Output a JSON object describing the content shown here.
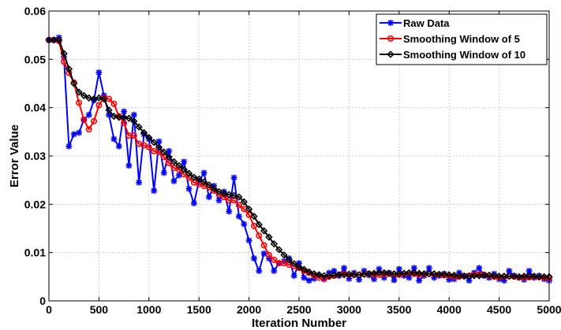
{
  "chart_data": {
    "type": "line",
    "xlabel": "Iteration Number",
    "ylabel": "Error Value",
    "xlim": [
      0,
      5000
    ],
    "ylim": [
      0,
      0.06
    ],
    "xticks": [
      0,
      500,
      1000,
      1500,
      2000,
      2500,
      3000,
      3500,
      4000,
      4500,
      5000
    ],
    "yticks": [
      0,
      0.01,
      0.02,
      0.03,
      0.04,
      0.05,
      0.06
    ],
    "ytick_labels": [
      "0",
      "0.01",
      "0.02",
      "0.03",
      "0.04",
      "0.05",
      "0.06"
    ],
    "grid": true,
    "legend_position": "top-right",
    "series": [
      {
        "name": "Raw Data",
        "color": "#0000ff",
        "marker": "asterisk",
        "x": [
          0,
          50,
          100,
          150,
          200,
          250,
          300,
          350,
          400,
          450,
          500,
          550,
          600,
          650,
          700,
          750,
          800,
          850,
          900,
          950,
          1000,
          1050,
          1100,
          1150,
          1200,
          1250,
          1300,
          1350,
          1400,
          1450,
          1500,
          1550,
          1600,
          1650,
          1700,
          1750,
          1800,
          1850,
          1900,
          1950,
          2000,
          2050,
          2100,
          2150,
          2200,
          2250,
          2300,
          2350,
          2400,
          2450,
          2500,
          2550,
          2600,
          2650,
          2700,
          2750,
          2800,
          2850,
          2900,
          2950,
          3000,
          3050,
          3100,
          3150,
          3200,
          3250,
          3300,
          3350,
          3400,
          3450,
          3500,
          3550,
          3600,
          3650,
          3700,
          3750,
          3800,
          3850,
          3900,
          3950,
          4000,
          4050,
          4100,
          4150,
          4200,
          4250,
          4300,
          4350,
          4400,
          4450,
          4500,
          4550,
          4600,
          4650,
          4700,
          4750,
          4800,
          4850,
          4900,
          4950,
          5000
        ],
        "y": [
          0.054,
          0.054,
          0.0545,
          0.0505,
          0.032,
          0.0345,
          0.0348,
          0.0375,
          0.0385,
          0.0415,
          0.0473,
          0.0425,
          0.0385,
          0.0335,
          0.032,
          0.0392,
          0.028,
          0.0385,
          0.0245,
          0.0345,
          0.0335,
          0.0228,
          0.033,
          0.0265,
          0.031,
          0.0248,
          0.026,
          0.0288,
          0.0232,
          0.0202,
          0.0248,
          0.0265,
          0.0215,
          0.0238,
          0.0208,
          0.0226,
          0.0185,
          0.0255,
          0.0175,
          0.0159,
          0.0125,
          0.0088,
          0.0062,
          0.0098,
          0.0088,
          0.0062,
          0.0078,
          0.0082,
          0.0088,
          0.0052,
          0.0078,
          0.0048,
          0.0042,
          0.0046,
          0.0052,
          0.0045,
          0.0058,
          0.0062,
          0.0052,
          0.0068,
          0.0046,
          0.0058,
          0.0044,
          0.0062,
          0.0053,
          0.0045,
          0.0066,
          0.0048,
          0.0058,
          0.0043,
          0.0066,
          0.0052,
          0.0048,
          0.0068,
          0.0042,
          0.0052,
          0.0068,
          0.0048,
          0.0052,
          0.0056,
          0.0044,
          0.0045,
          0.0058,
          0.0052,
          0.0042,
          0.0058,
          0.0068,
          0.0052,
          0.0048,
          0.0056,
          0.0045,
          0.0042,
          0.0062,
          0.0052,
          0.0048,
          0.0044,
          0.0062,
          0.0048,
          0.0052,
          0.0045,
          0.0042
        ]
      },
      {
        "name": "Smoothing Window of 5",
        "color": "#ff0000",
        "marker": "circle",
        "x": [
          0,
          50,
          100,
          150,
          200,
          250,
          300,
          350,
          400,
          450,
          500,
          550,
          600,
          650,
          700,
          750,
          800,
          850,
          900,
          950,
          1000,
          1050,
          1100,
          1150,
          1200,
          1250,
          1300,
          1350,
          1400,
          1450,
          1500,
          1550,
          1600,
          1650,
          1700,
          1750,
          1800,
          1850,
          1900,
          1950,
          2000,
          2050,
          2100,
          2150,
          2200,
          2250,
          2300,
          2350,
          2400,
          2450,
          2500,
          2550,
          2600,
          2650,
          2700,
          2750,
          2800,
          2850,
          2900,
          2950,
          3000,
          3050,
          3100,
          3150,
          3200,
          3250,
          3300,
          3350,
          3400,
          3450,
          3500,
          3550,
          3600,
          3650,
          3700,
          3750,
          3800,
          3850,
          3900,
          3950,
          4000,
          4050,
          4100,
          4150,
          4200,
          4250,
          4300,
          4350,
          4400,
          4450,
          4500,
          4550,
          4600,
          4650,
          4700,
          4750,
          4800,
          4850,
          4900,
          4950,
          5000
        ],
        "y": [
          0.054,
          0.054,
          0.0538,
          0.0495,
          0.0472,
          0.0452,
          0.041,
          0.0375,
          0.0355,
          0.0372,
          0.0405,
          0.042,
          0.0418,
          0.0408,
          0.0382,
          0.0368,
          0.0342,
          0.0342,
          0.0325,
          0.0322,
          0.0318,
          0.031,
          0.0308,
          0.0298,
          0.0285,
          0.0275,
          0.0272,
          0.0262,
          0.0255,
          0.0245,
          0.0242,
          0.0238,
          0.0235,
          0.0228,
          0.022,
          0.0215,
          0.0208,
          0.0208,
          0.0198,
          0.019,
          0.0178,
          0.0155,
          0.0135,
          0.0115,
          0.0095,
          0.0085,
          0.0078,
          0.0078,
          0.0075,
          0.0072,
          0.0068,
          0.0062,
          0.0058,
          0.0052,
          0.0048,
          0.0046,
          0.005,
          0.0052,
          0.0054,
          0.0056,
          0.0054,
          0.0054,
          0.0054,
          0.0055,
          0.0056,
          0.0054,
          0.0054,
          0.0055,
          0.0056,
          0.0055,
          0.0054,
          0.0056,
          0.0057,
          0.0056,
          0.0054,
          0.0055,
          0.0056,
          0.0055,
          0.0054,
          0.0053,
          0.0052,
          0.005,
          0.005,
          0.0051,
          0.0052,
          0.0054,
          0.0055,
          0.0054,
          0.0052,
          0.005,
          0.0049,
          0.005,
          0.0051,
          0.005,
          0.0049,
          0.0048,
          0.0049,
          0.005,
          0.0049,
          0.0048,
          0.0047
        ]
      },
      {
        "name": "Smoothing Window of 10",
        "color": "#000000",
        "marker": "diamond",
        "x": [
          0,
          50,
          100,
          150,
          200,
          250,
          300,
          350,
          400,
          450,
          500,
          550,
          600,
          650,
          700,
          750,
          800,
          850,
          900,
          950,
          1000,
          1050,
          1100,
          1150,
          1200,
          1250,
          1300,
          1350,
          1400,
          1450,
          1500,
          1550,
          1600,
          1650,
          1700,
          1750,
          1800,
          1850,
          1900,
          1950,
          2000,
          2050,
          2100,
          2150,
          2200,
          2250,
          2300,
          2350,
          2400,
          2450,
          2500,
          2550,
          2600,
          2650,
          2700,
          2750,
          2800,
          2850,
          2900,
          2950,
          3000,
          3050,
          3100,
          3150,
          3200,
          3250,
          3300,
          3350,
          3400,
          3450,
          3500,
          3550,
          3600,
          3650,
          3700,
          3750,
          3800,
          3850,
          3900,
          3950,
          4000,
          4050,
          4100,
          4150,
          4200,
          4250,
          4300,
          4350,
          4400,
          4450,
          4500,
          4550,
          4600,
          4650,
          4700,
          4750,
          4800,
          4850,
          4900,
          4950,
          5000
        ],
        "y": [
          0.054,
          0.054,
          0.054,
          0.0512,
          0.048,
          0.045,
          0.0432,
          0.0425,
          0.042,
          0.0418,
          0.042,
          0.0418,
          0.0395,
          0.0382,
          0.038,
          0.038,
          0.0378,
          0.0372,
          0.036,
          0.0348,
          0.0338,
          0.0328,
          0.0318,
          0.0308,
          0.0298,
          0.0288,
          0.028,
          0.0272,
          0.0264,
          0.0256,
          0.0252,
          0.0246,
          0.024,
          0.0232,
          0.0226,
          0.0222,
          0.022,
          0.0218,
          0.0215,
          0.0205,
          0.019,
          0.0175,
          0.0158,
          0.0145,
          0.0132,
          0.0118,
          0.0106,
          0.0095,
          0.0085,
          0.0077,
          0.007,
          0.0065,
          0.006,
          0.0056,
          0.0054,
          0.0052,
          0.0052,
          0.0053,
          0.0054,
          0.0054,
          0.0055,
          0.0054,
          0.0054,
          0.0055,
          0.0056,
          0.0057,
          0.0058,
          0.0058,
          0.0057,
          0.0056,
          0.0056,
          0.0057,
          0.0058,
          0.0058,
          0.0057,
          0.0056,
          0.0056,
          0.0056,
          0.0055,
          0.0055,
          0.0054,
          0.0053,
          0.0052,
          0.0051,
          0.0051,
          0.0052,
          0.0052,
          0.0053,
          0.0053,
          0.0052,
          0.0051,
          0.0051,
          0.0051,
          0.0051,
          0.005,
          0.0051,
          0.0051,
          0.0051,
          0.005,
          0.005,
          0.005
        ]
      }
    ]
  }
}
